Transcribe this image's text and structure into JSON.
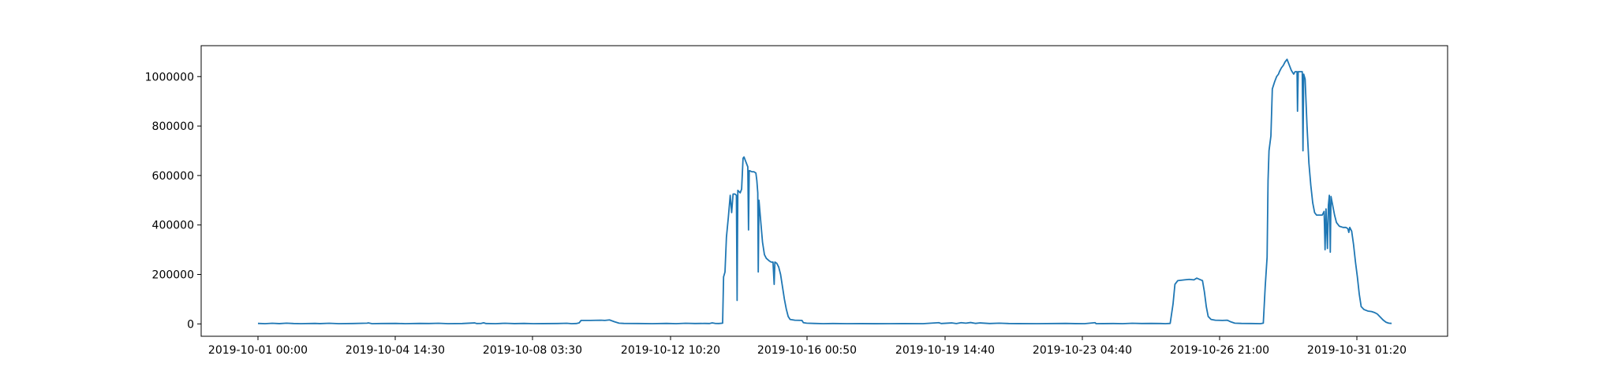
{
  "chart_data": {
    "type": "line",
    "title": "",
    "xlabel": "",
    "ylabel": "",
    "grid": false,
    "legend": "none",
    "line_color": "#1f77b4",
    "x_tick_labels": [
      "2019-10-01 00:00",
      "2019-10-04 14:30",
      "2019-10-08 03:30",
      "2019-10-12 10:20",
      "2019-10-16 00:50",
      "2019-10-19 14:40",
      "2019-10-23 04:40",
      "2019-10-26 21:00",
      "2019-10-31 01:20"
    ],
    "y_ticks": [
      0,
      200000,
      400000,
      600000,
      800000,
      1000000
    ],
    "y_tick_labels": [
      "0",
      "200000",
      "400000",
      "600000",
      "800000",
      "1000000"
    ],
    "ylim": [
      -50000,
      1125000
    ],
    "series": [
      {
        "values": [
          [
            0,
            2000
          ],
          [
            150,
            1000
          ],
          [
            300,
            2500
          ],
          [
            450,
            1200
          ],
          [
            600,
            3000
          ],
          [
            750,
            1500
          ],
          [
            900,
            1000
          ],
          [
            1200,
            2000
          ],
          [
            1300,
            1200
          ],
          [
            1500,
            2500
          ],
          [
            1700,
            1000
          ],
          [
            2000,
            1500
          ],
          [
            2300,
            3000
          ],
          [
            2320,
            4000
          ],
          [
            2400,
            1000
          ],
          [
            2600,
            1500
          ],
          [
            2900,
            2000
          ],
          [
            3100,
            1000
          ],
          [
            3400,
            2000
          ],
          [
            3600,
            1500
          ],
          [
            3800,
            2500
          ],
          [
            4000,
            1000
          ],
          [
            4300,
            1500
          ],
          [
            4560,
            4000
          ],
          [
            4600,
            1500
          ],
          [
            4700,
            2000
          ],
          [
            4750,
            4500
          ],
          [
            4800,
            1500
          ],
          [
            5000,
            1000
          ],
          [
            5200,
            2500
          ],
          [
            5400,
            1200
          ],
          [
            5600,
            2000
          ],
          [
            5800,
            1000
          ],
          [
            6000,
            1200
          ],
          [
            6300,
            1500
          ],
          [
            6500,
            2500
          ],
          [
            6600,
            1000
          ],
          [
            6700,
            1500
          ],
          [
            6760,
            4000
          ],
          [
            6800,
            14000
          ],
          [
            7000,
            14000
          ],
          [
            7200,
            15000
          ],
          [
            7300,
            14000
          ],
          [
            7400,
            16000
          ],
          [
            7500,
            9000
          ],
          [
            7600,
            3000
          ],
          [
            7700,
            2000
          ],
          [
            8000,
            1500
          ],
          [
            8300,
            1000
          ],
          [
            8600,
            2000
          ],
          [
            8800,
            1000
          ],
          [
            9000,
            2500
          ],
          [
            9200,
            1500
          ],
          [
            9400,
            2000
          ],
          [
            9500,
            1500
          ],
          [
            9560,
            4000
          ],
          [
            9620,
            2000
          ],
          [
            9700,
            1500
          ],
          [
            9780,
            3000
          ],
          [
            9800,
            190000
          ],
          [
            9830,
            210000
          ],
          [
            9860,
            350000
          ],
          [
            9900,
            430000
          ],
          [
            9940,
            520000
          ],
          [
            9970,
            450000
          ],
          [
            10000,
            525000
          ],
          [
            10040,
            525000
          ],
          [
            10070,
            520000
          ],
          [
            10085,
            95000
          ],
          [
            10100,
            540000
          ],
          [
            10150,
            530000
          ],
          [
            10180,
            545000
          ],
          [
            10210,
            670000
          ],
          [
            10230,
            675000
          ],
          [
            10260,
            660000
          ],
          [
            10290,
            645000
          ],
          [
            10310,
            635000
          ],
          [
            10325,
            380000
          ],
          [
            10340,
            620000
          ],
          [
            10400,
            615000
          ],
          [
            10440,
            615000
          ],
          [
            10480,
            610000
          ],
          [
            10500,
            580000
          ],
          [
            10520,
            530000
          ],
          [
            10530,
            210000
          ],
          [
            10545,
            500000
          ],
          [
            10580,
            420000
          ],
          [
            10620,
            330000
          ],
          [
            10660,
            280000
          ],
          [
            10700,
            265000
          ],
          [
            10760,
            255000
          ],
          [
            10800,
            250000
          ],
          [
            10840,
            250000
          ],
          [
            10865,
            160000
          ],
          [
            10880,
            250000
          ],
          [
            10920,
            245000
          ],
          [
            10960,
            230000
          ],
          [
            11000,
            200000
          ],
          [
            11040,
            150000
          ],
          [
            11080,
            100000
          ],
          [
            11120,
            60000
          ],
          [
            11160,
            30000
          ],
          [
            11200,
            18000
          ],
          [
            11300,
            15000
          ],
          [
            11450,
            14000
          ],
          [
            11480,
            5000
          ],
          [
            11550,
            3000
          ],
          [
            11700,
            2000
          ],
          [
            11900,
            1000
          ],
          [
            12100,
            1500
          ],
          [
            12400,
            1000
          ],
          [
            12700,
            1200
          ],
          [
            13000,
            800
          ],
          [
            13300,
            1000
          ],
          [
            13600,
            1200
          ],
          [
            14000,
            1000
          ],
          [
            14330,
            5000
          ],
          [
            14380,
            1500
          ],
          [
            14600,
            4000
          ],
          [
            14700,
            1500
          ],
          [
            14800,
            5000
          ],
          [
            14900,
            3000
          ],
          [
            15000,
            5500
          ],
          [
            15100,
            2000
          ],
          [
            15200,
            4000
          ],
          [
            15400,
            1500
          ],
          [
            15600,
            3000
          ],
          [
            15800,
            1500
          ],
          [
            16000,
            1200
          ],
          [
            16400,
            1000
          ],
          [
            16800,
            1500
          ],
          [
            17000,
            2000
          ],
          [
            17200,
            1200
          ],
          [
            17400,
            1000
          ],
          [
            17620,
            5000
          ],
          [
            17640,
            1000
          ],
          [
            17800,
            1200
          ],
          [
            18000,
            1500
          ],
          [
            18200,
            1000
          ],
          [
            18400,
            2500
          ],
          [
            18600,
            1500
          ],
          [
            18800,
            2000
          ],
          [
            19000,
            1500
          ],
          [
            19100,
            1000
          ],
          [
            19200,
            2000
          ],
          [
            19260,
            80000
          ],
          [
            19300,
            160000
          ],
          [
            19360,
            175000
          ],
          [
            19500,
            178000
          ],
          [
            19600,
            180000
          ],
          [
            19700,
            178000
          ],
          [
            19760,
            185000
          ],
          [
            19820,
            180000
          ],
          [
            19880,
            175000
          ],
          [
            19920,
            130000
          ],
          [
            19960,
            70000
          ],
          [
            20000,
            30000
          ],
          [
            20060,
            18000
          ],
          [
            20150,
            15000
          ],
          [
            20300,
            14000
          ],
          [
            20400,
            15000
          ],
          [
            20480,
            8000
          ],
          [
            20560,
            3000
          ],
          [
            20700,
            2000
          ],
          [
            20900,
            1500
          ],
          [
            21100,
            1000
          ],
          [
            21160,
            3000
          ],
          [
            21200,
            150000
          ],
          [
            21240,
            270000
          ],
          [
            21260,
            580000
          ],
          [
            21280,
            700000
          ],
          [
            21320,
            760000
          ],
          [
            21350,
            950000
          ],
          [
            21400,
            980000
          ],
          [
            21440,
            1000000
          ],
          [
            21480,
            1010000
          ],
          [
            21500,
            1020000
          ],
          [
            21540,
            1035000
          ],
          [
            21580,
            1045000
          ],
          [
            21620,
            1060000
          ],
          [
            21660,
            1070000
          ],
          [
            21700,
            1050000
          ],
          [
            21750,
            1025000
          ],
          [
            21800,
            1010000
          ],
          [
            21830,
            1020000
          ],
          [
            21870,
            1020000
          ],
          [
            21880,
            860000
          ],
          [
            21895,
            1020000
          ],
          [
            21930,
            1020000
          ],
          [
            21980,
            1020000
          ],
          [
            21995,
            700000
          ],
          [
            22010,
            1010000
          ],
          [
            22040,
            990000
          ],
          [
            22080,
            800000
          ],
          [
            22120,
            650000
          ],
          [
            22160,
            560000
          ],
          [
            22200,
            490000
          ],
          [
            22240,
            450000
          ],
          [
            22280,
            440000
          ],
          [
            22360,
            440000
          ],
          [
            22400,
            440000
          ],
          [
            22440,
            455000
          ],
          [
            22460,
            300000
          ],
          [
            22480,
            465000
          ],
          [
            22510,
            305000
          ],
          [
            22530,
            480000
          ],
          [
            22550,
            520000
          ],
          [
            22570,
            290000
          ],
          [
            22585,
            515000
          ],
          [
            22620,
            480000
          ],
          [
            22660,
            440000
          ],
          [
            22700,
            410000
          ],
          [
            22760,
            395000
          ],
          [
            22840,
            390000
          ],
          [
            22900,
            390000
          ],
          [
            22940,
            385000
          ],
          [
            22960,
            370000
          ],
          [
            22980,
            390000
          ],
          [
            23020,
            375000
          ],
          [
            23060,
            320000
          ],
          [
            23100,
            250000
          ],
          [
            23140,
            190000
          ],
          [
            23180,
            120000
          ],
          [
            23220,
            70000
          ],
          [
            23280,
            58000
          ],
          [
            23360,
            52000
          ],
          [
            23440,
            50000
          ],
          [
            23500,
            46000
          ],
          [
            23560,
            40000
          ],
          [
            23620,
            28000
          ],
          [
            23680,
            16000
          ],
          [
            23740,
            7000
          ],
          [
            23800,
            3000
          ],
          [
            23860,
            2000
          ]
        ]
      }
    ]
  }
}
